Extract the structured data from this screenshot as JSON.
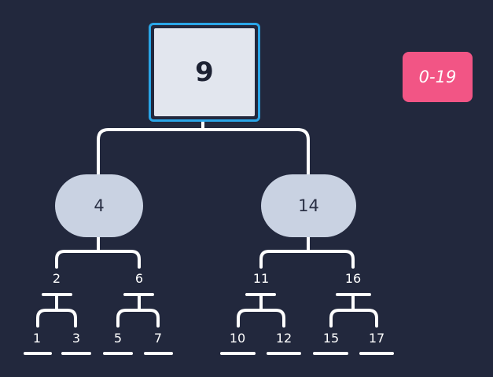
{
  "tree": {
    "root": {
      "value": "9"
    },
    "level1": [
      {
        "value": "4",
        "children": [
          "2",
          "6"
        ]
      },
      {
        "value": "14",
        "children": [
          "11",
          "16"
        ]
      }
    ],
    "leaves": {
      "n2": [
        "1",
        "3"
      ],
      "n6": [
        "5",
        "7"
      ],
      "n11": [
        "10",
        "12"
      ],
      "n16": [
        "15",
        "17"
      ]
    }
  },
  "range_badge": "0-19",
  "colors": {
    "background": "#22283d",
    "root_border": "#2aa6e8",
    "root_fill": "#e2e6ee",
    "pill_fill": "#c9d2e2",
    "badge": "#f25585",
    "lines": "#ffffff"
  }
}
